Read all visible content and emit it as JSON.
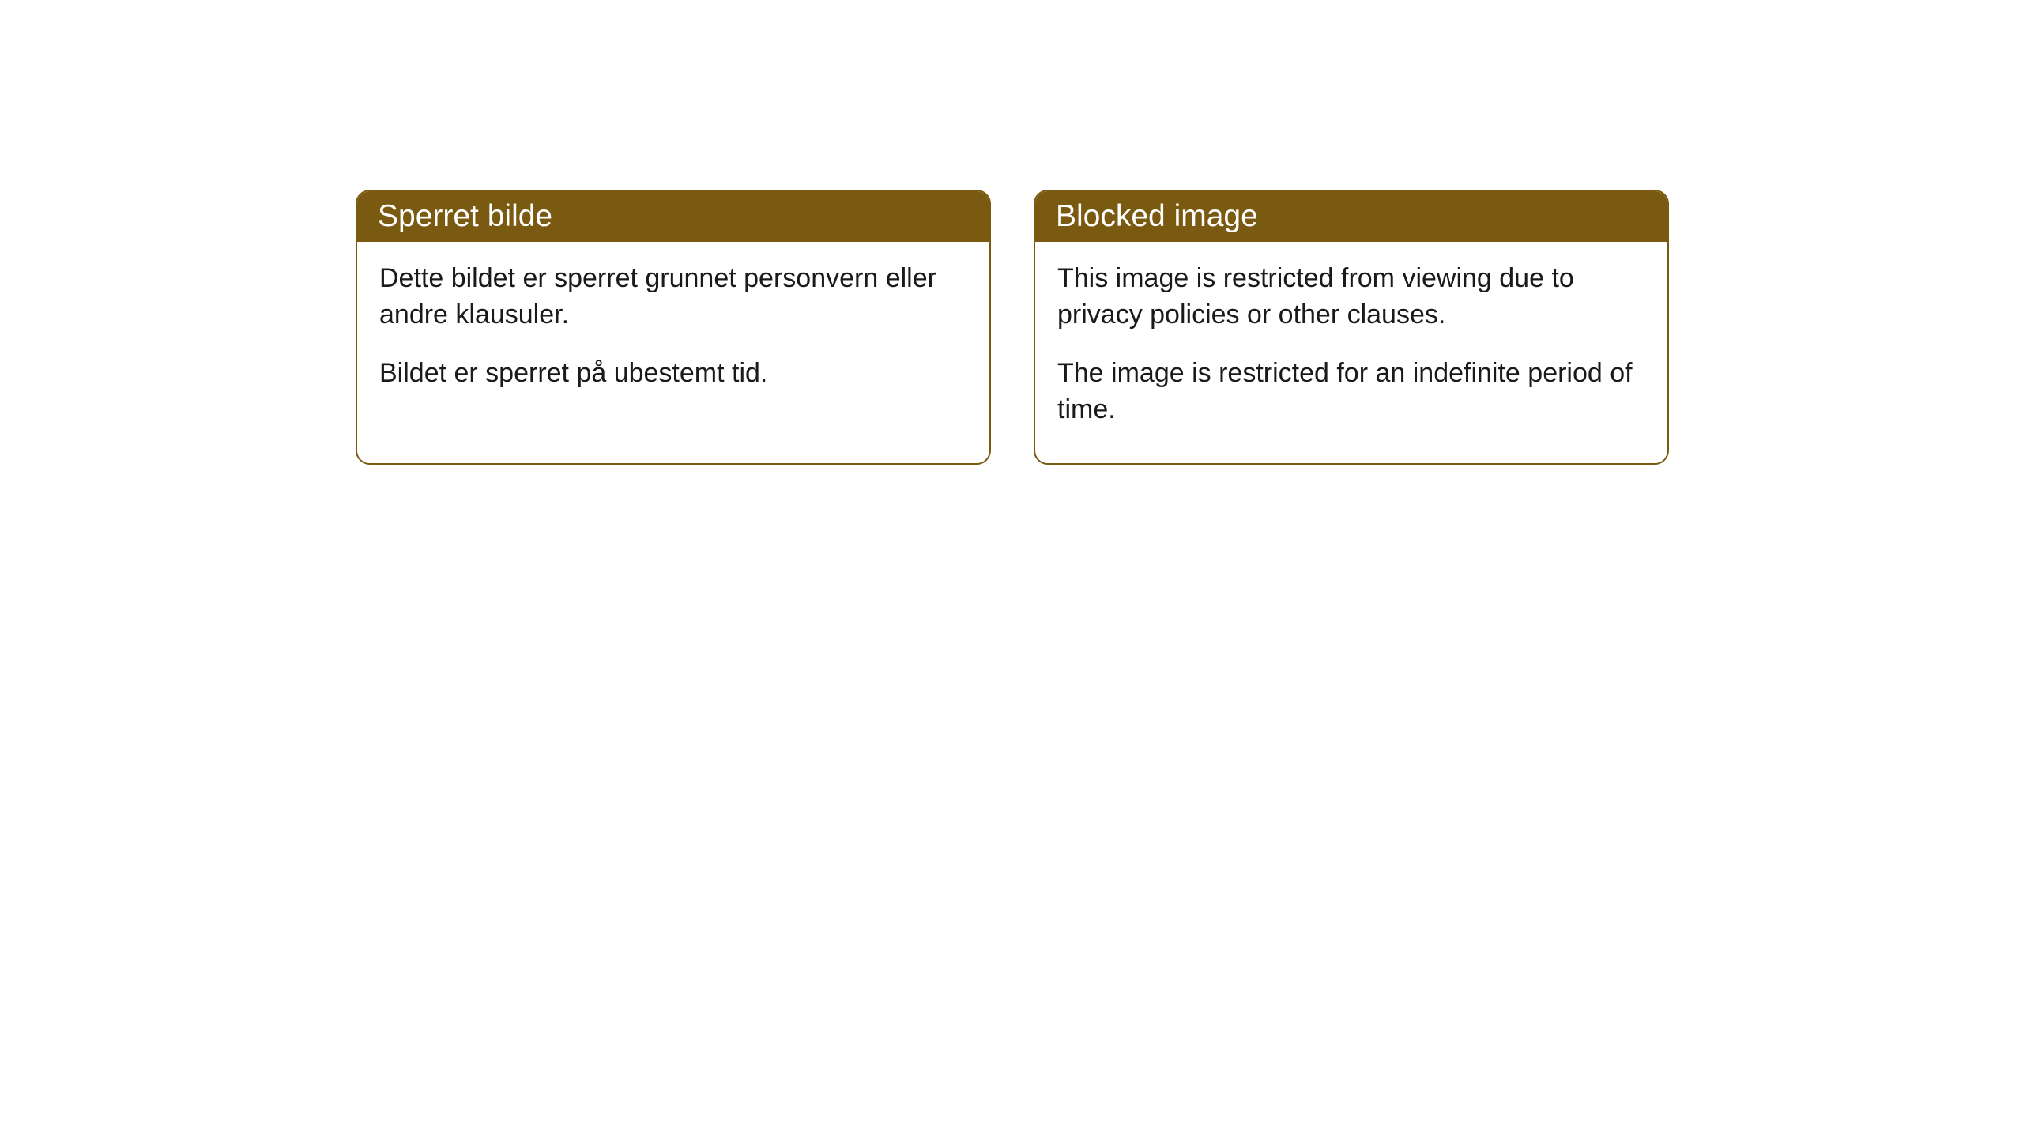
{
  "cards": [
    {
      "header": "Sperret bilde",
      "paragraph1": "Dette bildet er sperret grunnet personvern eller andre klausuler.",
      "paragraph2": "Bildet er sperret på ubestemt tid."
    },
    {
      "header": "Blocked image",
      "paragraph1": "This image is restricted from viewing due to privacy policies or other clauses.",
      "paragraph2": "The image is restricted for an indefinite period of time."
    }
  ],
  "styling": {
    "header_background_color": "#7a5a10",
    "header_text_color": "#ffffff",
    "card_border_color": "#7a5a10",
    "card_background_color": "#ffffff",
    "body_text_color": "#1a1a1a",
    "page_background_color": "#ffffff",
    "border_radius": 18,
    "header_font_size": 39,
    "body_font_size": 34
  }
}
